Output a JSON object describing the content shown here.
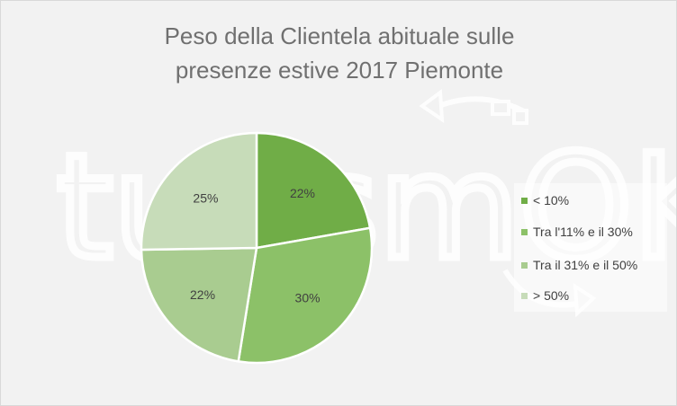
{
  "chart_data": {
    "type": "pie",
    "title_lines": [
      "Peso della Clientela abituale sulle",
      "presenze estive 2017 Piemonte"
    ],
    "categories": [
      "< 10%",
      "Tra l'11% e il 30%",
      "Tra il 31% e il 50%",
      "> 50%"
    ],
    "values": [
      22,
      30,
      22,
      25
    ],
    "data_labels": [
      "22%",
      "30%",
      "22%",
      "25%"
    ],
    "colors": [
      "#70ad47",
      "#8cc168",
      "#a9cc90",
      "#c7dcb9"
    ],
    "start_angle_deg": 0,
    "direction": "clockwise",
    "legend_position": "right"
  },
  "watermark": {
    "text": "turismOK",
    "color": "#ffffff"
  }
}
